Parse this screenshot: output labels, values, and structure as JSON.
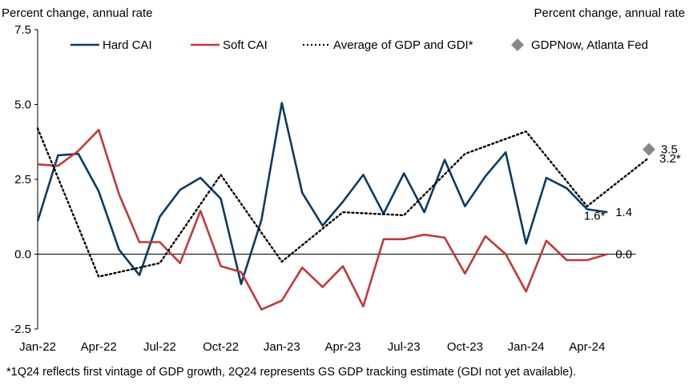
{
  "chart_data": {
    "type": "line",
    "left_axis_title": "Percent change, annual rate",
    "right_axis_title": "Percent change, annual rate",
    "ylim": [
      -2.5,
      7.5
    ],
    "yticks": [
      "7.5",
      "5.0",
      "2.5",
      "0.0",
      "-2.5"
    ],
    "ytick_values": [
      7.5,
      5.0,
      2.5,
      0.0,
      -2.5
    ],
    "xtick_labels": [
      "Jan-22",
      "Apr-22",
      "Jul-22",
      "Oct-22",
      "Jan-23",
      "Apr-23",
      "Jul-23",
      "Oct-23",
      "Jan-24",
      "Apr-24"
    ],
    "xtick_month_index": [
      0,
      3,
      6,
      9,
      12,
      15,
      18,
      21,
      24,
      27
    ],
    "x_months": [
      "Jan-22",
      "Feb-22",
      "Mar-22",
      "Apr-22",
      "May-22",
      "Jun-22",
      "Jul-22",
      "Aug-22",
      "Sep-22",
      "Oct-22",
      "Nov-22",
      "Dec-22",
      "Jan-23",
      "Feb-23",
      "Mar-23",
      "Apr-23",
      "May-23",
      "Jun-23",
      "Jul-23",
      "Aug-23",
      "Sep-23",
      "Oct-23",
      "Nov-23",
      "Dec-23",
      "Jan-24",
      "Feb-24",
      "Mar-24",
      "Apr-24",
      "May-24",
      "Jun-24"
    ],
    "grid": false,
    "legend_position": "top",
    "series": [
      {
        "name": "Hard CAI",
        "color": "#0b3a63",
        "style": "solid",
        "values": [
          1.1,
          3.3,
          3.35,
          2.1,
          0.15,
          -0.7,
          1.25,
          2.15,
          2.55,
          1.85,
          -1.0,
          1.15,
          5.05,
          2.05,
          0.95,
          1.75,
          2.65,
          1.35,
          2.7,
          1.4,
          3.15,
          1.6,
          2.6,
          3.4,
          0.35,
          2.55,
          2.2,
          1.5,
          1.4
        ]
      },
      {
        "name": "Soft CAI",
        "color": "#c0393b",
        "style": "solid",
        "values": [
          3.0,
          2.95,
          3.45,
          4.15,
          2.0,
          0.4,
          0.4,
          -0.3,
          1.45,
          -0.4,
          -0.6,
          -1.85,
          -1.55,
          -0.45,
          -1.1,
          -0.4,
          -1.75,
          0.5,
          0.5,
          0.65,
          0.55,
          -0.65,
          0.6,
          0.0,
          -1.25,
          0.45,
          -0.2,
          -0.2,
          0.0
        ]
      },
      {
        "name": "Average of GDP and GDI*",
        "color": "#000000",
        "style": "dotted",
        "points": [
          [
            0,
            4.2
          ],
          [
            3,
            -0.75
          ],
          [
            6,
            -0.3
          ],
          [
            9,
            2.65
          ],
          [
            12,
            -0.25
          ],
          [
            15,
            1.4
          ],
          [
            18,
            1.3
          ],
          [
            21,
            3.35
          ],
          [
            24,
            4.1
          ],
          [
            27,
            1.6
          ],
          [
            30,
            3.2
          ]
        ]
      }
    ],
    "markers": [
      {
        "name": "GDPNow, Atlanta Fed",
        "color": "#888888",
        "shape": "diamond",
        "x": 30,
        "y": 3.5
      }
    ],
    "annotations": [
      {
        "text": "3.5",
        "x": 30,
        "y": 3.5
      },
      {
        "text": "3.2*",
        "x": 30,
        "y": 3.2
      },
      {
        "text": "1.6*",
        "x": 27,
        "y": 1.6
      },
      {
        "text": "1.4",
        "x": 28,
        "y": 1.4
      },
      {
        "text": "0.0",
        "x": 28,
        "y": 0.0
      }
    ],
    "footnote": "*1Q24 reflects first vintage of GDP growth, 2Q24 represents GS GDP tracking estimate (GDI not yet available)."
  }
}
